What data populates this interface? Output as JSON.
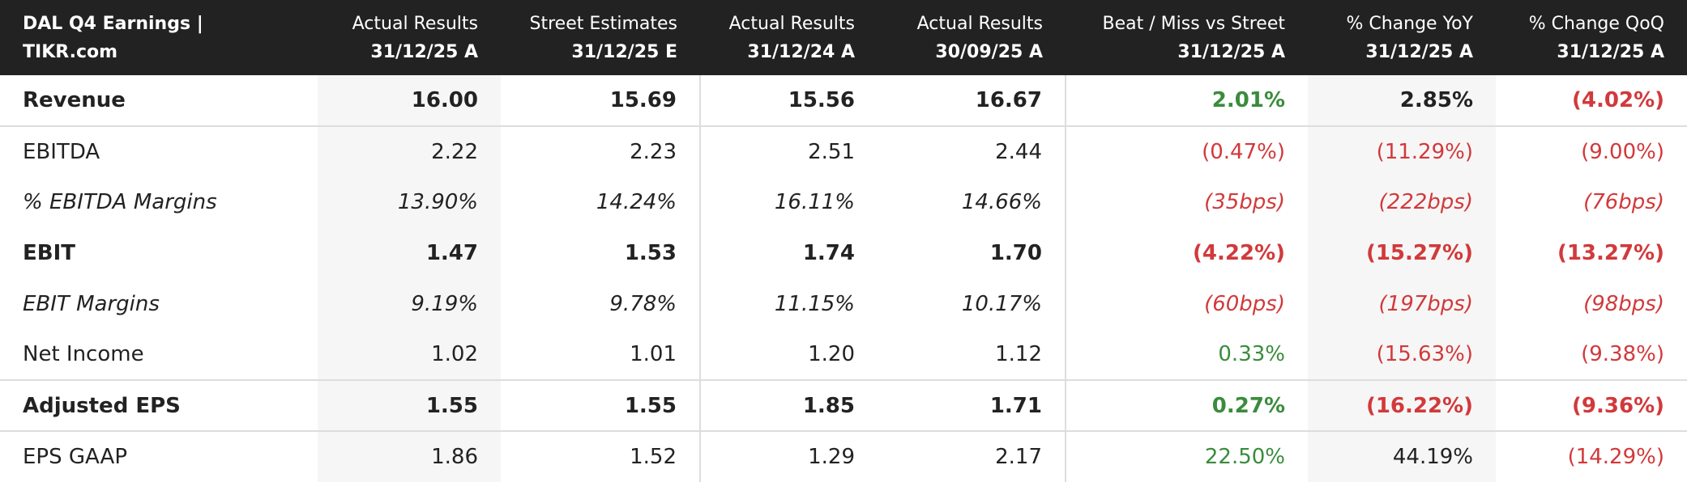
{
  "header": {
    "title": "DAL Q4 Earnings | TIKR.com",
    "columns": [
      [
        "Actual Results",
        "31/12/25 A"
      ],
      [
        "Street Estimates",
        "31/12/25 E"
      ],
      [
        "Actual Results",
        "31/12/24 A"
      ],
      [
        "Actual Results",
        "30/09/25 A"
      ],
      [
        "Beat / Miss vs Street",
        "31/12/25 A"
      ],
      [
        "% Change YoY",
        "31/12/25 A"
      ],
      [
        "% Change QoQ",
        "31/12/25 A"
      ]
    ]
  },
  "table": {
    "rows": [
      [
        "Revenue",
        "16.00",
        "15.69",
        "15.56",
        "16.67",
        "2.01%",
        "2.85%",
        "(4.02%)"
      ],
      [
        "EBITDA",
        "2.22",
        "2.23",
        "2.51",
        "2.44",
        "(0.47%)",
        "(11.29%)",
        "(9.00%)"
      ],
      [
        "% EBITDA Margins",
        "13.90%",
        "14.24%",
        "16.11%",
        "14.66%",
        "(35bps)",
        "(222bps)",
        "(76bps)"
      ],
      [
        "EBIT",
        "1.47",
        "1.53",
        "1.74",
        "1.70",
        "(4.22%)",
        "(15.27%)",
        "(13.27%)"
      ],
      [
        "EBIT Margins",
        "9.19%",
        "9.78%",
        "11.15%",
        "10.17%",
        "(60bps)",
        "(197bps)",
        "(98bps)"
      ],
      [
        "Net Income",
        "1.02",
        "1.01",
        "1.20",
        "1.12",
        "0.33%",
        "(15.63%)",
        "(9.38%)"
      ],
      [
        "Adjusted EPS",
        "1.55",
        "1.55",
        "1.85",
        "1.71",
        "0.27%",
        "(16.22%)",
        "(9.36%)"
      ],
      [
        "EPS GAAP",
        "1.86",
        "1.52",
        "1.29",
        "2.17",
        "22.50%",
        "44.19%",
        "(14.29%)"
      ]
    ]
  }
}
